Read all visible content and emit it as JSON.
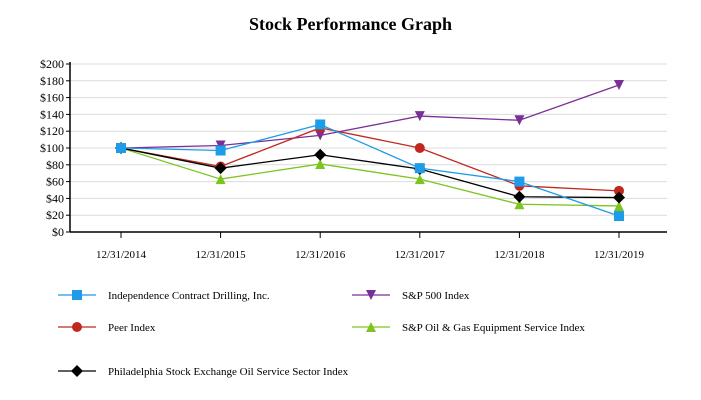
{
  "chart_data": {
    "type": "line",
    "title": "Stock Performance Graph",
    "categories": [
      "12/31/2014",
      "12/31/2015",
      "12/31/2016",
      "12/31/2017",
      "12/31/2018",
      "12/31/2019"
    ],
    "y_ticks": [
      "$0",
      "$20",
      "$40",
      "$60",
      "$80",
      "$100",
      "$120",
      "$140",
      "$160",
      "$180",
      "$200"
    ],
    "ylim": [
      0,
      200
    ],
    "grid": true,
    "legend_position": "bottom",
    "series": [
      {
        "name": "Independence Contract Drilling, Inc.",
        "color": "#1e9be9",
        "marker": "square",
        "values": [
          100,
          97,
          128,
          76,
          60,
          19
        ]
      },
      {
        "name": "S&P 500 Index",
        "color": "#7a2f96",
        "marker": "triangle-down",
        "values": [
          100,
          103,
          115,
          138,
          133,
          175
        ]
      },
      {
        "name": "Peer Index",
        "color": "#c0281e",
        "marker": "circle",
        "values": [
          100,
          78,
          124,
          100,
          55,
          49
        ]
      },
      {
        "name": "S&P Oil & Gas Equipment Service Index",
        "color": "#7cc51f",
        "marker": "triangle-up",
        "values": [
          100,
          63,
          81,
          63,
          33,
          31
        ]
      },
      {
        "name": "Philadelphia Stock Exchange Oil Service Sector Index",
        "color": "#000000",
        "marker": "diamond",
        "values": [
          100,
          76,
          92,
          75,
          42,
          41
        ]
      }
    ]
  }
}
